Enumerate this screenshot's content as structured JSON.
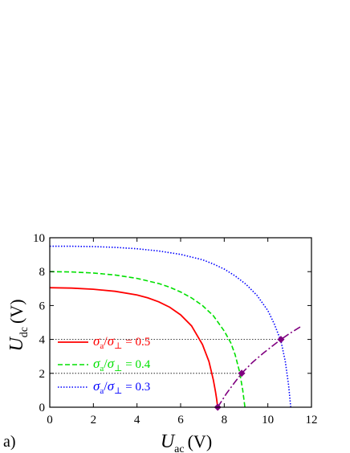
{
  "panel_label": "a)",
  "chart_data": {
    "type": "line",
    "title": "",
    "xlabel": {
      "symbol": "U",
      "subscript": "ac",
      "unit": "(V)"
    },
    "ylabel": {
      "symbol": "U",
      "subscript": "dc",
      "unit": "(V)"
    },
    "xlim": [
      0,
      12
    ],
    "ylim": [
      0,
      10
    ],
    "x_ticks": [
      0,
      2,
      4,
      6,
      8,
      10,
      12
    ],
    "y_ticks": [
      0,
      2,
      4,
      6,
      8,
      10
    ],
    "legend_position": "bottom-left",
    "series": [
      {
        "name": {
          "s1": "σ",
          "sub1": "a",
          "sep": "/",
          "s2": "σ",
          "sub2": "⊥",
          "eq": " = 0.5"
        },
        "color": "#ff0000",
        "style": "solid",
        "x": [
          0,
          1,
          2,
          3,
          4,
          4.5,
          5,
          5.5,
          6,
          6.5,
          7,
          7.3,
          7.5,
          7.6,
          7.65,
          7.7
        ],
        "y": [
          7.05,
          7.03,
          6.96,
          6.84,
          6.62,
          6.45,
          6.22,
          5.9,
          5.45,
          4.8,
          3.7,
          2.7,
          1.6,
          0.9,
          0.5,
          0
        ]
      },
      {
        "name": {
          "s1": "σ",
          "sub1": "a",
          "sep": "/",
          "s2": "σ",
          "sub2": "⊥",
          "eq": " = 0.4"
        },
        "color": "#00e000",
        "style": "dashed",
        "x": [
          0,
          1,
          2,
          3,
          4,
          5,
          5.5,
          6,
          6.5,
          7,
          7.5,
          8,
          8.3,
          8.5,
          8.7,
          8.85,
          8.95
        ],
        "y": [
          8,
          7.98,
          7.92,
          7.8,
          7.6,
          7.3,
          7.08,
          6.8,
          6.45,
          6,
          5.4,
          4.5,
          3.8,
          3.1,
          2.1,
          1,
          0
        ]
      },
      {
        "name": {
          "s1": "σ",
          "sub1": "a",
          "sep": "/",
          "s2": "σ",
          "sub2": "⊥",
          "eq": " = 0.3"
        },
        "color": "#0000ff",
        "style": "dotted",
        "x": [
          0,
          1,
          2,
          3,
          4,
          5,
          6,
          7,
          7.5,
          8,
          8.5,
          9,
          9.5,
          10,
          10.3,
          10.6,
          10.8,
          10.95,
          11.05
        ],
        "y": [
          9.5,
          9.5,
          9.48,
          9.43,
          9.35,
          9.22,
          9.02,
          8.7,
          8.45,
          8.15,
          7.75,
          7.25,
          6.6,
          5.7,
          4.9,
          3.9,
          2.7,
          1.3,
          0
        ]
      },
      {
        "name": "",
        "color": "#800080",
        "style": "dashdot",
        "x": [
          7.7,
          8.1,
          8.5,
          8.8,
          9.3,
          9.8,
          10.3,
          10.6,
          11,
          11.5
        ],
        "y": [
          0,
          0.8,
          1.5,
          2,
          2.65,
          3.2,
          3.7,
          4,
          4.35,
          4.75
        ]
      }
    ],
    "markers": {
      "color": "#800080",
      "shape": "diamond",
      "points": [
        {
          "x": 7.7,
          "y": 0
        },
        {
          "x": 8.8,
          "y": 2
        },
        {
          "x": 10.6,
          "y": 4
        }
      ]
    },
    "reference_lines": [
      {
        "y": 2,
        "x_end": 8.8,
        "color": "#000000",
        "style": "dotted"
      },
      {
        "y": 4,
        "x_end": 10.6,
        "color": "#000000",
        "style": "dotted"
      }
    ]
  }
}
